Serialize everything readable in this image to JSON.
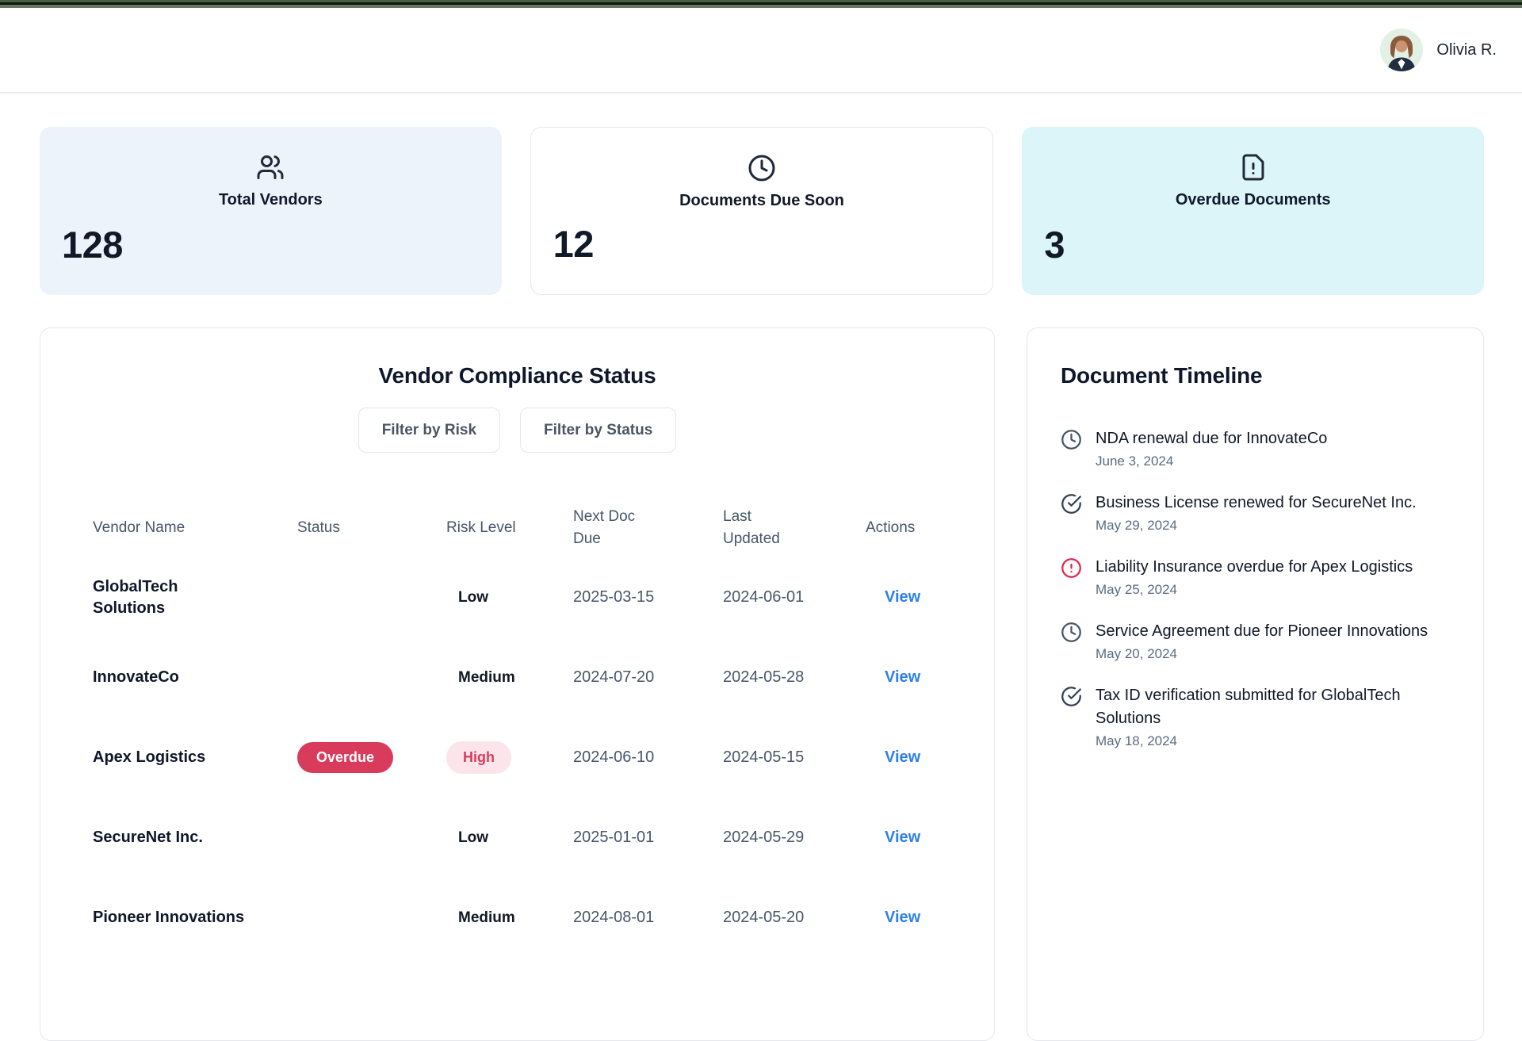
{
  "header": {
    "user_name": "Olivia R."
  },
  "stats": [
    {
      "icon": "users-icon",
      "label": "Total Vendors",
      "value": "128",
      "bg": "#edf3fb"
    },
    {
      "icon": "clock-icon",
      "label": "Documents Due Soon",
      "value": "12",
      "bg": "#ffffff"
    },
    {
      "icon": "file-alert-icon",
      "label": "Overdue Documents",
      "value": "3",
      "bg": "#dcf5f8"
    }
  ],
  "compliance": {
    "title": "Vendor Compliance Status",
    "filters": [
      {
        "label": "Filter by Risk"
      },
      {
        "label": "Filter by Status"
      }
    ],
    "columns": [
      "Vendor Name",
      "Status",
      "Risk Level",
      "Next Doc Due",
      "Last Updated",
      "Actions"
    ],
    "rows": [
      {
        "vendor": "GlobalTech Solutions",
        "status": "",
        "risk": "Low",
        "next_due": "2025-03-15",
        "last_updated": "2024-06-01",
        "action": "View"
      },
      {
        "vendor": "InnovateCo",
        "status": "",
        "risk": "Medium",
        "next_due": "2024-07-20",
        "last_updated": "2024-05-28",
        "action": "View"
      },
      {
        "vendor": "Apex Logistics",
        "status": "Overdue",
        "risk": "High",
        "next_due": "2024-06-10",
        "last_updated": "2024-05-15",
        "action": "View"
      },
      {
        "vendor": "SecureNet Inc.",
        "status": "",
        "risk": "Low",
        "next_due": "2025-01-01",
        "last_updated": "2024-05-29",
        "action": "View"
      },
      {
        "vendor": "Pioneer Innovations",
        "status": "",
        "risk": "Medium",
        "next_due": "2024-08-01",
        "last_updated": "2024-05-20",
        "action": "View"
      }
    ]
  },
  "timeline": {
    "title": "Document Timeline",
    "items": [
      {
        "icon": "clock-icon",
        "text": "NDA renewal due for InnovateCo",
        "date": "June 3, 2024"
      },
      {
        "icon": "check-circle-icon",
        "text": "Business License renewed for SecureNet Inc.",
        "date": "May 29, 2024"
      },
      {
        "icon": "alert-circle-icon",
        "text": "Liability Insurance overdue for Apex Logistics",
        "date": "May 25, 2024"
      },
      {
        "icon": "clock-icon",
        "text": "Service Agreement due for Pioneer Innovations",
        "date": "May 20, 2024"
      },
      {
        "icon": "check-circle-icon",
        "text": "Tax ID verification submitted for GlobalTech Solutions",
        "date": "May 18, 2024"
      }
    ]
  },
  "colors": {
    "accent_strip_green": "#45613f",
    "overdue_badge": "#d93b5c",
    "high_risk_bg": "#fbe5ea",
    "link_blue": "#2d7ff0",
    "card_blue_bg": "#edf3fb",
    "card_cyan_bg": "#dcf5f8",
    "alert_red": "#e0284a"
  }
}
